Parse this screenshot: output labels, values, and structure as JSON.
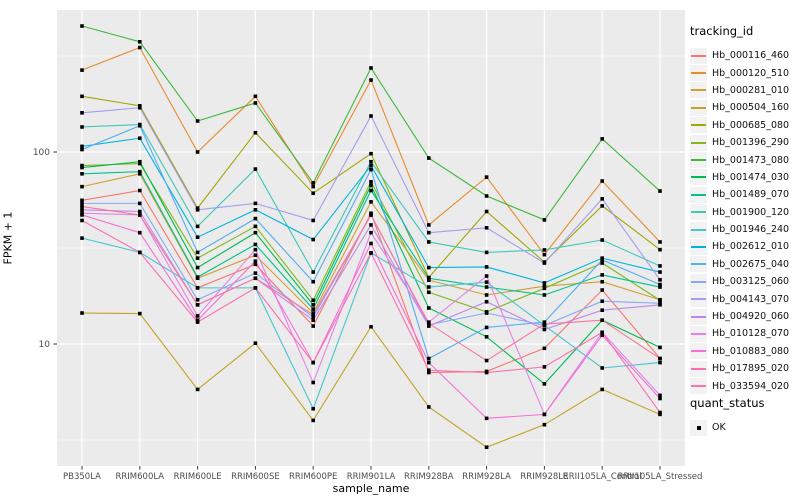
{
  "chart_data": {
    "type": "line",
    "title": "",
    "xlabel": "sample_name",
    "ylabel": "FPKM + 1",
    "y_scale": "log10",
    "y_ticks": [
      10,
      100
    ],
    "y_minor_ticks": [
      3.162,
      31.62,
      316.2
    ],
    "ylim": [
      2.3,
      549
    ],
    "grid": "on",
    "panel_color": "#EBEBEB",
    "grid_color": "#FFFFFF",
    "marker": {
      "shape": "square",
      "color": "#000000",
      "size": 3.6
    },
    "legend": {
      "title": "tracking_id",
      "position": "right"
    },
    "quant_legend": {
      "title": "quant_status",
      "items": [
        "OK"
      ]
    },
    "categories": [
      "PB350LA",
      "RRIM600LA",
      "RRIM600LE",
      "RRIM600SE",
      "RRIM600PE",
      "RRIM901LA",
      "RRIM928BA",
      "RRIM928LA",
      "RRIM928LE",
      "RRII105LA_Control",
      "RRII105LA_Stressed"
    ],
    "series": [
      {
        "name": "Hb_000116_460",
        "color": "#F8766D",
        "values": [
          56,
          63,
          19.6,
          26,
          12.4,
          48,
          7.1,
          7.2,
          9.5,
          19.1,
          8.4
        ]
      },
      {
        "name": "Hb_000120_510",
        "color": "#E98A2C",
        "values": [
          267,
          350,
          100,
          195,
          66,
          237,
          41.7,
          74,
          29.2,
          70.6,
          34
        ]
      },
      {
        "name": "Hb_000281_010",
        "color": "#D59C33",
        "values": [
          66,
          77,
          22,
          29,
          14.5,
          55,
          21.5,
          18,
          20,
          21.1,
          17
        ]
      },
      {
        "name": "Hb_000504_160",
        "color": "#C3A324",
        "values": [
          14.5,
          14.4,
          5.8,
          10.1,
          4.0,
          12.3,
          4.7,
          2.9,
          3.8,
          5.8,
          4.3
        ]
      },
      {
        "name": "Hb_000685_080",
        "color": "#A3A500",
        "values": [
          195,
          174,
          51,
          126,
          61,
          98,
          22.2,
          49,
          26.7,
          52.4,
          31
        ]
      },
      {
        "name": "Hb_001396_290",
        "color": "#82B81E",
        "values": [
          85,
          87,
          28,
          41,
          16.9,
          70,
          18.6,
          14.7,
          19.5,
          26.4,
          16.9
        ]
      },
      {
        "name": "Hb_001473_080",
        "color": "#3DB83B",
        "values": [
          453,
          375,
          145,
          180,
          69,
          274,
          93,
          59,
          44.3,
          117,
          62.6
        ]
      },
      {
        "name": "Hb_001474_030",
        "color": "#00BB4E",
        "values": [
          83,
          89,
          25,
          38,
          16,
          67,
          15.4,
          10.9,
          6.2,
          13.3,
          9.6
        ]
      },
      {
        "name": "Hb_001489_070",
        "color": "#00C08D",
        "values": [
          77,
          79,
          22.3,
          33,
          15.2,
          63,
          22,
          19.8,
          18,
          22.9,
          19.8
        ]
      },
      {
        "name": "Hb_001900_120",
        "color": "#3EC8B8",
        "values": [
          135,
          139,
          41,
          81.5,
          23.7,
          89,
          34,
          30,
          30.9,
          34.8,
          25.5
        ]
      },
      {
        "name": "Hb_001946_240",
        "color": "#45C5CE",
        "values": [
          35.6,
          30,
          19.6,
          19.6,
          4.6,
          29.8,
          19.8,
          21,
          12.5,
          7.5,
          8.0
        ]
      },
      {
        "name": "Hb_002612_010",
        "color": "#00B3DC",
        "values": [
          107,
          118,
          36,
          50,
          35,
          85,
          25,
          25.2,
          20.8,
          28,
          23.7
        ]
      },
      {
        "name": "Hb_002675_040",
        "color": "#52AEF0",
        "values": [
          103,
          137,
          30,
          45,
          21.1,
          81,
          8.4,
          12.2,
          13,
          27.4,
          20.4
        ]
      },
      {
        "name": "Hb_003125_060",
        "color": "#86A8F4",
        "values": [
          54,
          54,
          17,
          23.4,
          13.8,
          47,
          12.6,
          14.5,
          12.5,
          16.7,
          16.3
        ]
      },
      {
        "name": "Hb_004143_070",
        "color": "#A49CF0",
        "values": [
          160,
          170,
          50,
          54,
          44,
          154,
          38,
          40.3,
          26.4,
          57,
          21.6
        ]
      },
      {
        "name": "Hb_004920_060",
        "color": "#C186EC",
        "values": [
          50,
          49,
          16,
          22,
          13.3,
          41.7,
          12.4,
          16.6,
          11.9,
          15,
          16
        ]
      },
      {
        "name": "Hb_010128_070",
        "color": "#E383E8",
        "values": [
          48,
          47,
          14,
          31,
          6.3,
          38,
          13,
          22.6,
          4.3,
          11.5,
          5.4
        ]
      },
      {
        "name": "Hb_010883_080",
        "color": "#F56FD8",
        "values": [
          47,
          38,
          13.3,
          27,
          8.0,
          33.4,
          8.0,
          4.1,
          4.3,
          11.1,
          5.2
        ]
      },
      {
        "name": "Hb_017895_020",
        "color": "#FB6EB4",
        "values": [
          44,
          30,
          13,
          19.6,
          8.0,
          29.8,
          7.3,
          7.1,
          7.6,
          11.5,
          4.4
        ]
      },
      {
        "name": "Hb_033594_020",
        "color": "#F9779B",
        "values": [
          52,
          47,
          16,
          22,
          14.2,
          47,
          12.8,
          8.2,
          12.7,
          13.3,
          8.4
        ]
      }
    ]
  }
}
